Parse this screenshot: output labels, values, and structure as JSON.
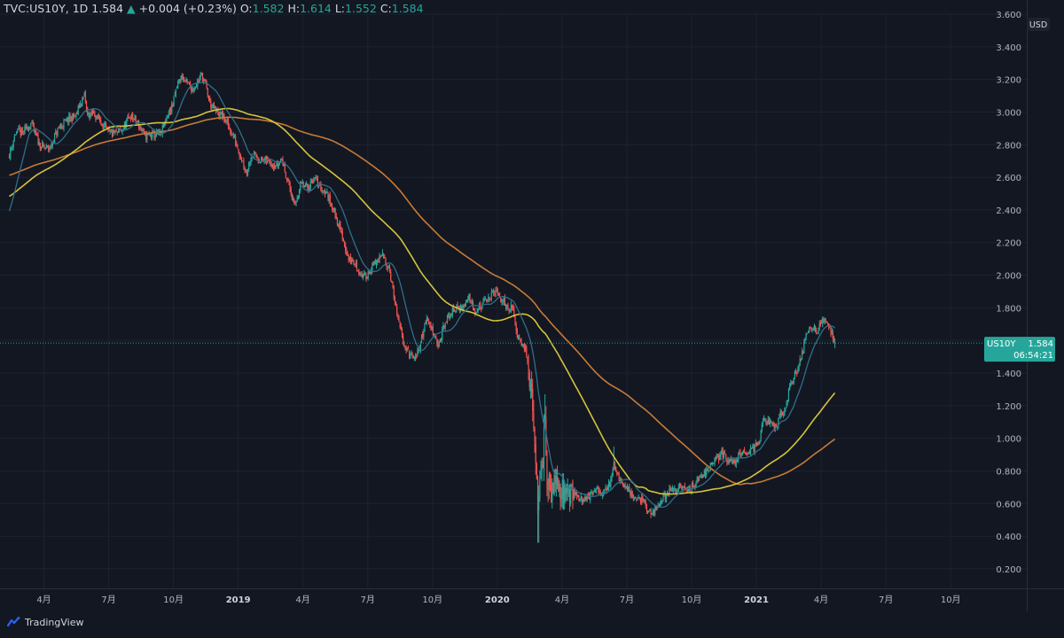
{
  "header": {
    "symbol": "TVC:US10Y, 1D",
    "last": "1.584",
    "change": "+0.004 (+0.23%)",
    "o_label": "O:",
    "o": "1.582",
    "h_label": "H:",
    "h": "1.614",
    "l_label": "L:",
    "l": "1.552",
    "c_label": "C:",
    "c": "1.584"
  },
  "price_scale": {
    "currency": "USD",
    "last_label": "US10Y",
    "last_value": "1.584",
    "countdown": "06:54:21"
  },
  "branding": {
    "name": "TradingView"
  },
  "colors": {
    "background": "#131722",
    "up": "#26a69a",
    "down": "#ef5350",
    "ma_fast": "#2f6f8a",
    "ma_mid": "#d4c33a",
    "ma_slow": "#c77a36",
    "grid": "#1e2230"
  },
  "chart_data": {
    "type": "candlestick",
    "title": "",
    "ylim": [
      0.08,
      3.6
    ],
    "grid": true,
    "y_ticks": [
      "3.600",
      "3.400",
      "3.200",
      "3.000",
      "2.800",
      "2.600",
      "2.400",
      "2.200",
      "2.000",
      "1.800",
      "1.600",
      "1.400",
      "1.200",
      "1.000",
      "0.800",
      "0.600",
      "0.400",
      "0.200"
    ],
    "x_ticks": [
      {
        "label": "4月",
        "month": 0
      },
      {
        "label": "7月",
        "month": 3
      },
      {
        "label": "10月",
        "month": 6
      },
      {
        "label": "2019",
        "month": 9
      },
      {
        "label": "4月",
        "month": 12
      },
      {
        "label": "7月",
        "month": 15
      },
      {
        "label": "10月",
        "month": 18
      },
      {
        "label": "2020",
        "month": 21
      },
      {
        "label": "4月",
        "month": 24
      },
      {
        "label": "7月",
        "month": 27
      },
      {
        "label": "10月",
        "month": 30
      },
      {
        "label": "2021",
        "month": 33
      },
      {
        "label": "4月",
        "month": 36
      },
      {
        "label": "7月",
        "month": 39
      },
      {
        "label": "10月",
        "month": 42
      }
    ],
    "price_anchors": [
      [
        -1.6,
        2.74
      ],
      [
        -1.3,
        2.88
      ],
      [
        -1.0,
        2.87
      ],
      [
        -0.6,
        2.93
      ],
      [
        -0.2,
        2.8
      ],
      [
        0.0,
        2.78
      ],
      [
        0.3,
        2.78
      ],
      [
        0.6,
        2.88
      ],
      [
        0.9,
        2.93
      ],
      [
        1.2,
        2.96
      ],
      [
        1.5,
        2.98
      ],
      [
        1.7,
        3.06
      ],
      [
        1.9,
        3.1
      ],
      [
        2.0,
        2.98
      ],
      [
        2.3,
        2.99
      ],
      [
        2.6,
        2.95
      ],
      [
        3.0,
        2.87
      ],
      [
        3.4,
        2.87
      ],
      [
        3.7,
        2.9
      ],
      [
        4.0,
        2.98
      ],
      [
        4.3,
        2.94
      ],
      [
        4.7,
        2.85
      ],
      [
        5.0,
        2.86
      ],
      [
        5.4,
        2.86
      ],
      [
        5.7,
        2.97
      ],
      [
        6.0,
        3.06
      ],
      [
        6.2,
        3.18
      ],
      [
        6.4,
        3.22
      ],
      [
        6.6,
        3.18
      ],
      [
        6.9,
        3.14
      ],
      [
        7.1,
        3.18
      ],
      [
        7.3,
        3.23
      ],
      [
        7.5,
        3.16
      ],
      [
        7.7,
        3.05
      ],
      [
        8.0,
        3.0
      ],
      [
        8.3,
        2.97
      ],
      [
        8.6,
        2.9
      ],
      [
        8.9,
        2.81
      ],
      [
        9.2,
        2.7
      ],
      [
        9.4,
        2.63
      ],
      [
        9.6,
        2.74
      ],
      [
        9.8,
        2.73
      ],
      [
        10.1,
        2.7
      ],
      [
        10.4,
        2.7
      ],
      [
        10.8,
        2.67
      ],
      [
        11.0,
        2.72
      ],
      [
        11.3,
        2.58
      ],
      [
        11.6,
        2.42
      ],
      [
        11.9,
        2.56
      ],
      [
        12.2,
        2.53
      ],
      [
        12.5,
        2.6
      ],
      [
        12.8,
        2.54
      ],
      [
        13.1,
        2.5
      ],
      [
        13.4,
        2.41
      ],
      [
        13.8,
        2.25
      ],
      [
        14.1,
        2.1
      ],
      [
        14.4,
        2.07
      ],
      [
        14.7,
        2.0
      ],
      [
        14.9,
        1.99
      ],
      [
        15.1,
        2.03
      ],
      [
        15.4,
        2.08
      ],
      [
        15.7,
        2.12
      ],
      [
        16.0,
        2.04
      ],
      [
        16.2,
        1.88
      ],
      [
        16.4,
        1.72
      ],
      [
        16.6,
        1.62
      ],
      [
        16.8,
        1.54
      ],
      [
        17.0,
        1.5
      ],
      [
        17.2,
        1.48
      ],
      [
        17.4,
        1.56
      ],
      [
        17.7,
        1.73
      ],
      [
        17.9,
        1.69
      ],
      [
        18.1,
        1.64
      ],
      [
        18.3,
        1.56
      ],
      [
        18.5,
        1.68
      ],
      [
        18.8,
        1.76
      ],
      [
        19.1,
        1.8
      ],
      [
        19.4,
        1.8
      ],
      [
        19.7,
        1.87
      ],
      [
        20.0,
        1.78
      ],
      [
        20.3,
        1.82
      ],
      [
        20.6,
        1.86
      ],
      [
        20.9,
        1.9
      ],
      [
        21.1,
        1.86
      ],
      [
        21.3,
        1.84
      ],
      [
        21.5,
        1.8
      ],
      [
        21.7,
        1.8
      ],
      [
        21.9,
        1.65
      ],
      [
        22.1,
        1.6
      ],
      [
        22.3,
        1.55
      ],
      [
        22.5,
        1.35
      ],
      [
        22.7,
        1.05
      ],
      [
        22.8,
        0.77
      ],
      [
        22.9,
        0.54
      ],
      [
        23.0,
        0.9
      ],
      [
        23.1,
        0.8
      ],
      [
        23.2,
        1.16
      ],
      [
        23.3,
        0.72
      ],
      [
        23.5,
        0.68
      ],
      [
        23.7,
        0.8
      ],
      [
        23.9,
        0.7
      ],
      [
        24.1,
        0.64
      ],
      [
        24.3,
        0.7
      ],
      [
        24.6,
        0.66
      ],
      [
        24.9,
        0.62
      ],
      [
        25.3,
        0.65
      ],
      [
        25.6,
        0.68
      ],
      [
        25.9,
        0.66
      ],
      [
        26.2,
        0.72
      ],
      [
        26.4,
        0.85
      ],
      [
        26.6,
        0.75
      ],
      [
        26.9,
        0.72
      ],
      [
        27.2,
        0.66
      ],
      [
        27.5,
        0.63
      ],
      [
        27.8,
        0.61
      ],
      [
        28.0,
        0.55
      ],
      [
        28.2,
        0.53
      ],
      [
        28.4,
        0.58
      ],
      [
        28.7,
        0.64
      ],
      [
        29.0,
        0.68
      ],
      [
        29.3,
        0.69
      ],
      [
        29.6,
        0.7
      ],
      [
        29.9,
        0.68
      ],
      [
        30.2,
        0.73
      ],
      [
        30.5,
        0.78
      ],
      [
        30.8,
        0.82
      ],
      [
        31.1,
        0.86
      ],
      [
        31.4,
        0.91
      ],
      [
        31.7,
        0.87
      ],
      [
        32.0,
        0.84
      ],
      [
        32.3,
        0.92
      ],
      [
        32.6,
        0.92
      ],
      [
        32.9,
        0.94
      ],
      [
        33.1,
        0.96
      ],
      [
        33.3,
        1.1
      ],
      [
        33.6,
        1.1
      ],
      [
        33.9,
        1.06
      ],
      [
        34.1,
        1.16
      ],
      [
        34.3,
        1.15
      ],
      [
        34.5,
        1.3
      ],
      [
        34.7,
        1.37
      ],
      [
        34.9,
        1.43
      ],
      [
        35.1,
        1.52
      ],
      [
        35.3,
        1.62
      ],
      [
        35.5,
        1.7
      ],
      [
        35.8,
        1.66
      ],
      [
        36.1,
        1.73
      ],
      [
        36.3,
        1.69
      ],
      [
        36.5,
        1.65
      ],
      [
        36.65,
        1.584
      ]
    ]
  }
}
